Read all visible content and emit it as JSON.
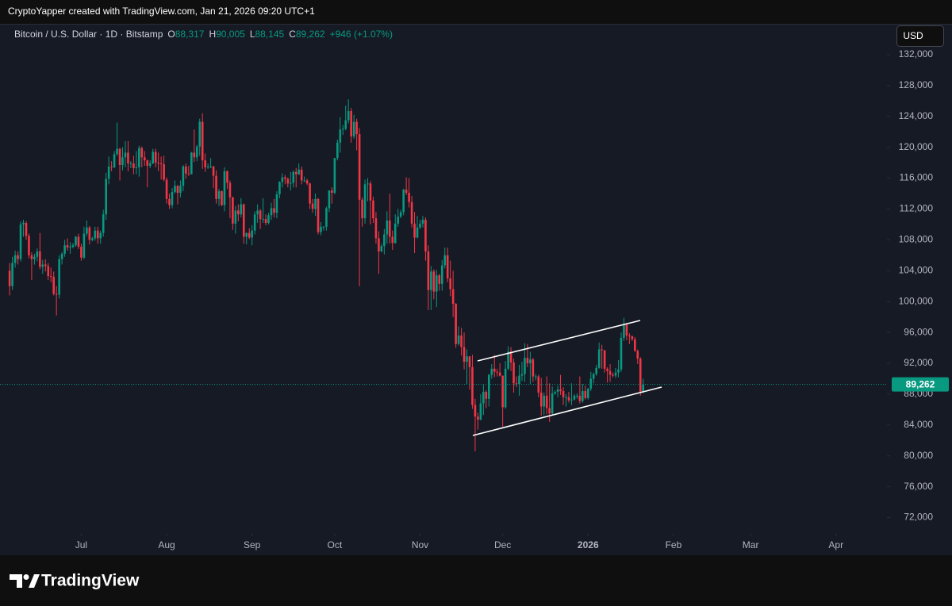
{
  "header": {
    "caption": "CryptoYapper created with TradingView.com, Jan 21, 2026 09:20 UTC+1"
  },
  "legend": {
    "symbol": "Bitcoin / U.S. Dollar · 1D · Bitstamp",
    "o_label": "O",
    "open": "88,317",
    "h_label": "H",
    "high": "90,005",
    "l_label": "L",
    "low": "88,145",
    "c_label": "C",
    "close": "89,262",
    "change": "+946 (+1.07%)"
  },
  "currency_button": "USD",
  "footer": {
    "brand": "TradingView"
  },
  "chart_data": {
    "type": "candlestick",
    "up_color": "#089981",
    "down_color": "#f23645",
    "last_price": {
      "value": 89262,
      "label": "89,262",
      "color": "#089981"
    },
    "xlim": [
      -3.5,
      318.5
    ],
    "xticks": [
      {
        "value": 26,
        "label": "Jul"
      },
      {
        "value": 57,
        "label": "Aug"
      },
      {
        "value": 88,
        "label": "Sep"
      },
      {
        "value": 118,
        "label": "Oct"
      },
      {
        "value": 149,
        "label": "Nov"
      },
      {
        "value": 179,
        "label": "Dec"
      },
      {
        "value": 210,
        "label": "2026"
      },
      {
        "value": 241,
        "label": "Feb"
      },
      {
        "value": 269,
        "label": "Mar"
      },
      {
        "value": 300,
        "label": "Apr"
      }
    ],
    "ylim": [
      69900,
      136000
    ],
    "yticks": [
      {
        "value": 72000,
        "label": "72,000"
      },
      {
        "value": 76000,
        "label": "76,000"
      },
      {
        "value": 80000,
        "label": "80,000"
      },
      {
        "value": 84000,
        "label": "84,000"
      },
      {
        "value": 88000,
        "label": "88,000"
      },
      {
        "value": 92000,
        "label": "92,000"
      },
      {
        "value": 96000,
        "label": "96,000"
      },
      {
        "value": 100000,
        "label": "100,000"
      },
      {
        "value": 104000,
        "label": "104,000"
      },
      {
        "value": 108000,
        "label": "108,000"
      },
      {
        "value": 112000,
        "label": "112,000"
      },
      {
        "value": 116000,
        "label": "116,000"
      },
      {
        "value": 120000,
        "label": "120,000"
      },
      {
        "value": 124000,
        "label": "124,000"
      },
      {
        "value": 128000,
        "label": "128,000"
      },
      {
        "value": 132000,
        "label": "132,000"
      }
    ],
    "open": [
      104000,
      102000,
      105000,
      106000,
      105500,
      110000,
      110200,
      108500,
      106000,
      105500,
      105800,
      106500,
      104500,
      104800,
      104600,
      103300,
      103200,
      101000,
      100900,
      105500,
      106200,
      107300,
      107000,
      107100,
      107300,
      108400,
      107100,
      105700,
      108800,
      109600,
      108000,
      108200,
      109200,
      108200,
      108900,
      111300,
      115900,
      117500,
      117400,
      119100,
      119800,
      117700,
      118700,
      119300,
      117900,
      117900,
      117300,
      117400,
      119900,
      118700,
      118300,
      117600,
      117900,
      119400,
      118000,
      117900,
      117800,
      115800,
      113300,
      112500,
      114200,
      115000,
      114100,
      115000,
      117500,
      116600,
      116500,
      119300,
      118700,
      120100,
      123300,
      118300,
      117400,
      117500,
      117500,
      116300,
      113300,
      114300,
      112500,
      116900,
      115400,
      113500,
      110100,
      111800,
      111300,
      112600,
      108400,
      108900,
      108300,
      109200,
      111300,
      111800,
      110700,
      110700,
      110200,
      111200,
      112100,
      111500,
      113900,
      115500,
      116100,
      115900,
      115300,
      115400,
      116800,
      116500,
      117100,
      115700,
      115700,
      115300,
      112700,
      112000,
      113300,
      109000,
      109700,
      109700,
      112100,
      114400,
      114100,
      118600,
      120600,
      122300,
      122400,
      123500,
      124700,
      121400,
      123300,
      121700,
      113200,
      110800,
      115200,
      115300,
      113100,
      110800,
      108200,
      106500,
      107200,
      108700,
      110500,
      108400,
      107600,
      110100,
      111000,
      111600,
      114500,
      114100,
      112900,
      110100,
      108300,
      109600,
      110100,
      110600,
      106500,
      101500,
      103900,
      101300,
      103400,
      102300,
      104700,
      106000,
      103000,
      101600,
      99700,
      94500,
      95600,
      94100,
      92200,
      92900,
      91500,
      86600,
      85100,
      84700,
      86800,
      88300,
      87400,
      90500,
      91300,
      90900,
      90800,
      90400,
      86300,
      91300,
      93500,
      92100,
      89400,
      89300,
      90400,
      90600,
      92700,
      92000,
      92500,
      90300,
      90300,
      88200,
      86400,
      87800,
      86200,
      85500,
      88100,
      88300,
      88600,
      88400,
      87600,
      87600,
      87200,
      87300,
      87800,
      87800,
      87100,
      88400,
      87500,
      88700,
      90000,
      90600,
      91400,
      93800,
      93700,
      91300,
      91000,
      90500,
      90400,
      90800,
      91200,
      95300,
      97000,
      95600,
      95500,
      95100,
      93600,
      92600,
      88317
    ],
    "high": [
      105000,
      105800,
      106600,
      106500,
      110400,
      110600,
      110400,
      108800,
      106400,
      106200,
      106900,
      108900,
      105400,
      105500,
      105000,
      104400,
      103900,
      102000,
      106000,
      106400,
      108000,
      108200,
      107700,
      107600,
      108500,
      108800,
      107500,
      109700,
      110500,
      109800,
      108400,
      109700,
      109700,
      109200,
      111900,
      116700,
      118800,
      118200,
      119500,
      123200,
      119900,
      120000,
      120800,
      120800,
      118200,
      118900,
      119500,
      120200,
      120100,
      119500,
      118400,
      118300,
      119800,
      119800,
      119300,
      118800,
      118900,
      116100,
      114000,
      114700,
      115700,
      115100,
      115700,
      117700,
      117900,
      117600,
      119400,
      122300,
      120300,
      123700,
      124400,
      119200,
      117900,
      118600,
      117600,
      117000,
      114600,
      114400,
      117400,
      117000,
      115700,
      113600,
      112400,
      112600,
      113400,
      112700,
      108900,
      109500,
      109900,
      111700,
      112600,
      112000,
      113400,
      111300,
      111500,
      112800,
      113300,
      114300,
      115600,
      116600,
      116400,
      116100,
      116800,
      117000,
      117300,
      117900,
      117500,
      116200,
      115900,
      115400,
      113300,
      114000,
      113400,
      110300,
      109800,
      112300,
      114400,
      114800,
      118600,
      121000,
      123900,
      122900,
      125400,
      126200,
      125100,
      124200,
      123700,
      122500,
      113500,
      115800,
      116000,
      115600,
      113600,
      111600,
      109100,
      107500,
      109400,
      111700,
      114000,
      109200,
      111300,
      112000,
      111900,
      114600,
      116100,
      116000,
      113700,
      111600,
      111100,
      110600,
      111100,
      110900,
      107300,
      104600,
      104200,
      104100,
      103600,
      105400,
      107000,
      107000,
      105300,
      104000,
      99800,
      96800,
      96600,
      96000,
      93800,
      92900,
      93100,
      87400,
      85600,
      88000,
      89200,
      88500,
      90600,
      91900,
      93100,
      91300,
      92000,
      90400,
      92300,
      94200,
      94100,
      92600,
      90300,
      91800,
      92200,
      94600,
      94500,
      93500,
      92700,
      90600,
      90500,
      90100,
      88200,
      90300,
      89400,
      89000,
      88500,
      89100,
      90500,
      88900,
      88000,
      88300,
      89400,
      88000,
      88100,
      90300,
      89300,
      89100,
      88800,
      90900,
      90800,
      91800,
      94700,
      94400,
      93700,
      91500,
      91900,
      90800,
      91400,
      92400,
      96000,
      97900,
      97200,
      95900,
      95600,
      95400,
      93800,
      92800,
      90005
    ],
    "low": [
      100800,
      101500,
      104400,
      104800,
      105200,
      108400,
      108000,
      105600,
      102800,
      104800,
      105200,
      104200,
      103600,
      103900,
      102800,
      102500,
      100800,
      98200,
      100400,
      104800,
      105800,
      106600,
      106200,
      106900,
      107100,
      106800,
      105300,
      105500,
      108500,
      107400,
      107800,
      107900,
      107500,
      107500,
      108400,
      110600,
      115200,
      116900,
      117300,
      118900,
      115700,
      117000,
      117400,
      116900,
      117300,
      116500,
      116500,
      116200,
      117400,
      117600,
      114800,
      117300,
      117800,
      117400,
      116900,
      115800,
      115600,
      112700,
      112000,
      112100,
      114000,
      112600,
      113500,
      114300,
      115900,
      116300,
      116500,
      118100,
      118200,
      118900,
      117200,
      116800,
      117200,
      117300,
      114700,
      112700,
      112400,
      112400,
      111700,
      114600,
      110800,
      109300,
      108800,
      110400,
      110900,
      107500,
      107400,
      108100,
      107300,
      108700,
      110200,
      109400,
      110200,
      109900,
      110000,
      110600,
      110900,
      110800,
      113400,
      114800,
      115200,
      114800,
      114400,
      114800,
      114800,
      116400,
      115200,
      115500,
      115100,
      112000,
      111500,
      111100,
      108700,
      108600,
      109200,
      109200,
      111600,
      112700,
      113900,
      118300,
      119300,
      121600,
      122200,
      123100,
      120600,
      121100,
      119600,
      102000,
      109700,
      110100,
      113000,
      110000,
      110200,
      107500,
      103600,
      106400,
      106100,
      107500,
      107500,
      106700,
      107500,
      109700,
      110800,
      111200,
      113800,
      112200,
      109600,
      106300,
      108200,
      109400,
      109600,
      105300,
      98900,
      98900,
      100300,
      99300,
      101400,
      101400,
      104300,
      102500,
      100700,
      98000,
      94000,
      94300,
      93000,
      91200,
      89300,
      88600,
      86100,
      80600,
      83400,
      84600,
      85300,
      86200,
      86400,
      90000,
      90200,
      90300,
      90300,
      83800,
      86100,
      91100,
      91000,
      88200,
      88900,
      87800,
      89700,
      89600,
      91500,
      89300,
      89600,
      89800,
      87600,
      85200,
      85300,
      85400,
      84400,
      85300,
      87900,
      87600,
      87900,
      86600,
      86400,
      86900,
      86600,
      87200,
      87400,
      86800,
      86900,
      87300,
      87300,
      88400,
      89400,
      90400,
      91300,
      91300,
      90800,
      89500,
      89600,
      90200,
      90100,
      90200,
      90900,
      94900,
      95000,
      94500,
      94900,
      93500,
      91900,
      87800,
      88145
    ],
    "close": [
      102000,
      105000,
      106000,
      105500,
      110000,
      110200,
      108500,
      106000,
      105500,
      105800,
      106500,
      104500,
      104800,
      104600,
      103300,
      103200,
      101000,
      100900,
      105500,
      106200,
      107300,
      107000,
      107100,
      107300,
      108400,
      107100,
      105700,
      108800,
      109600,
      108000,
      108200,
      109200,
      108200,
      108900,
      111300,
      115900,
      117500,
      117400,
      119100,
      119800,
      117700,
      118700,
      119300,
      117900,
      117900,
      117300,
      117400,
      119900,
      118700,
      118300,
      117600,
      117900,
      119400,
      118000,
      117900,
      117800,
      115800,
      113300,
      112500,
      114200,
      115000,
      114100,
      115000,
      117500,
      116600,
      116500,
      119300,
      118700,
      120100,
      123300,
      118300,
      117400,
      117500,
      117500,
      116300,
      113300,
      114300,
      112500,
      116900,
      115400,
      113500,
      110100,
      111800,
      111300,
      112600,
      108400,
      108900,
      108300,
      109200,
      111300,
      111800,
      110700,
      110700,
      110200,
      111200,
      112100,
      111500,
      113900,
      115500,
      116100,
      115900,
      115300,
      115400,
      116800,
      116500,
      117100,
      115700,
      115700,
      115300,
      112700,
      112000,
      113300,
      109000,
      109700,
      109700,
      112100,
      114400,
      114100,
      118600,
      120600,
      122300,
      122400,
      123500,
      124700,
      121400,
      123300,
      121700,
      113200,
      110800,
      115200,
      115300,
      113100,
      110800,
      108200,
      106500,
      107200,
      108700,
      110500,
      108400,
      107600,
      110100,
      111000,
      111600,
      114500,
      114100,
      112900,
      110100,
      108300,
      109600,
      110100,
      110600,
      106500,
      101500,
      103900,
      101300,
      103400,
      102300,
      104700,
      106000,
      103000,
      101600,
      99700,
      94500,
      95600,
      94100,
      92200,
      92900,
      91500,
      86600,
      85100,
      84700,
      86800,
      88300,
      87400,
      90500,
      91300,
      90900,
      90800,
      90400,
      86300,
      91300,
      93500,
      92100,
      89400,
      89300,
      90400,
      90600,
      92700,
      92000,
      92500,
      90300,
      90300,
      88200,
      86400,
      87800,
      86200,
      85500,
      88100,
      88300,
      88600,
      88400,
      87600,
      87600,
      87200,
      87300,
      87800,
      87800,
      87100,
      88400,
      87500,
      88700,
      90000,
      90600,
      91400,
      93800,
      93700,
      91300,
      91000,
      90500,
      90400,
      90800,
      91200,
      95300,
      97000,
      95600,
      95500,
      95100,
      93600,
      92600,
      88317,
      89262
    ]
  }
}
